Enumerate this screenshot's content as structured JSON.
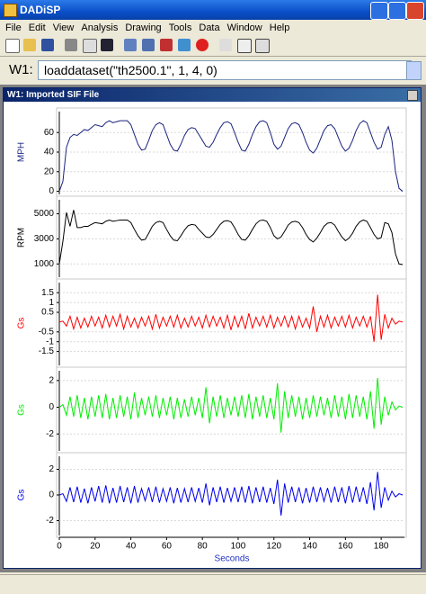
{
  "window": {
    "title": "DADiSP",
    "menu": [
      "File",
      "Edit",
      "View",
      "Analysis",
      "Drawing",
      "Tools",
      "Data",
      "Window",
      "Help"
    ],
    "command_label": "W1:",
    "command": "loaddataset(\"th2500.1\", 1, 4, 0)",
    "panel_title": "W1: Imported SIF File"
  },
  "chart_data": [
    {
      "type": "line",
      "ylabel": "MPH",
      "color": "#1a237e",
      "xlim": [
        0,
        193
      ],
      "ylim": [
        -5,
        85
      ],
      "yticks": [
        0,
        20,
        40,
        60
      ],
      "grid": true,
      "x": [
        0,
        2,
        4,
        6,
        8,
        10,
        12,
        14,
        16,
        18,
        20,
        22,
        24,
        26,
        28,
        30,
        32,
        34,
        36,
        38,
        40,
        42,
        44,
        46,
        48,
        50,
        52,
        54,
        56,
        58,
        60,
        62,
        64,
        66,
        68,
        70,
        72,
        74,
        76,
        78,
        80,
        82,
        84,
        86,
        88,
        90,
        92,
        94,
        96,
        98,
        100,
        102,
        104,
        106,
        108,
        110,
        112,
        114,
        116,
        118,
        120,
        122,
        124,
        126,
        128,
        130,
        132,
        134,
        136,
        138,
        140,
        142,
        144,
        146,
        148,
        150,
        152,
        154,
        156,
        158,
        160,
        162,
        164,
        166,
        168,
        170,
        172,
        174,
        176,
        178,
        180,
        182,
        184,
        186,
        188,
        190,
        192
      ],
      "values": [
        0,
        10,
        45,
        55,
        58,
        57,
        60,
        63,
        62,
        65,
        68,
        67,
        66,
        70,
        72,
        70,
        71,
        72,
        72,
        72,
        68,
        58,
        48,
        42,
        43,
        52,
        62,
        68,
        70,
        68,
        58,
        48,
        42,
        41,
        48,
        57,
        63,
        65,
        64,
        58,
        52,
        46,
        45,
        50,
        58,
        65,
        70,
        71,
        69,
        60,
        50,
        42,
        41,
        48,
        58,
        66,
        71,
        72,
        70,
        60,
        48,
        43,
        46,
        55,
        64,
        69,
        70,
        68,
        60,
        50,
        42,
        39,
        44,
        53,
        62,
        67,
        68,
        64,
        55,
        46,
        41,
        44,
        52,
        62,
        69,
        72,
        70,
        60,
        50,
        43,
        45,
        58,
        66,
        52,
        20,
        3,
        0
      ]
    },
    {
      "type": "line",
      "ylabel": "RPM",
      "color": "#000000",
      "xlim": [
        0,
        193
      ],
      "ylim": [
        -200,
        6400
      ],
      "yticks": [
        1000,
        3000,
        5000
      ],
      "grid": true,
      "x": [
        0,
        2,
        4,
        6,
        8,
        10,
        12,
        14,
        16,
        18,
        20,
        22,
        24,
        26,
        28,
        30,
        32,
        34,
        36,
        38,
        40,
        42,
        44,
        46,
        48,
        50,
        52,
        54,
        56,
        58,
        60,
        62,
        64,
        66,
        68,
        70,
        72,
        74,
        76,
        78,
        80,
        82,
        84,
        86,
        88,
        90,
        92,
        94,
        96,
        98,
        100,
        102,
        104,
        106,
        108,
        110,
        112,
        114,
        116,
        118,
        120,
        122,
        124,
        126,
        128,
        130,
        132,
        134,
        136,
        138,
        140,
        142,
        144,
        146,
        148,
        150,
        152,
        154,
        156,
        158,
        160,
        162,
        164,
        166,
        168,
        170,
        172,
        174,
        176,
        178,
        180,
        182,
        184,
        186,
        188,
        190,
        192
      ],
      "values": [
        1000,
        2800,
        5100,
        4000,
        5300,
        3900,
        3900,
        4000,
        4000,
        4150,
        4300,
        4250,
        4200,
        4400,
        4500,
        4400,
        4450,
        4500,
        4500,
        4500,
        4300,
        3750,
        3250,
        2900,
        2950,
        3450,
        4000,
        4300,
        4400,
        4300,
        3750,
        3250,
        2900,
        2850,
        3250,
        3700,
        4050,
        4150,
        4100,
        3750,
        3450,
        3150,
        3100,
        3350,
        3750,
        4150,
        4400,
        4450,
        4350,
        3900,
        3350,
        2950,
        2900,
        3250,
        3750,
        4200,
        4450,
        4500,
        4400,
        3900,
        3250,
        3000,
        3150,
        3600,
        4100,
        4350,
        4400,
        4300,
        3900,
        3350,
        2950,
        2750,
        3050,
        3500,
        4000,
        4250,
        4300,
        4100,
        3600,
        3150,
        2850,
        3050,
        3450,
        4000,
        4350,
        4500,
        4400,
        3900,
        3350,
        3000,
        3100,
        4300,
        4200,
        3500,
        1800,
        1000,
        950
      ]
    },
    {
      "type": "line",
      "ylabel": "Gs",
      "color": "#ff0000",
      "xlim": [
        0,
        193
      ],
      "ylim": [
        -2.3,
        2.2
      ],
      "yticks": [
        1.5,
        1,
        0.5,
        -0.5,
        -1,
        -1.5
      ],
      "grid": true,
      "x": [
        0,
        2,
        4,
        6,
        8,
        10,
        12,
        14,
        16,
        18,
        20,
        22,
        24,
        26,
        28,
        30,
        32,
        34,
        36,
        38,
        40,
        42,
        44,
        46,
        48,
        50,
        52,
        54,
        56,
        58,
        60,
        62,
        64,
        66,
        68,
        70,
        72,
        74,
        76,
        78,
        80,
        82,
        84,
        86,
        88,
        90,
        92,
        94,
        96,
        98,
        100,
        102,
        104,
        106,
        108,
        110,
        112,
        114,
        116,
        118,
        120,
        122,
        124,
        126,
        128,
        130,
        132,
        134,
        136,
        138,
        140,
        142,
        144,
        146,
        148,
        150,
        152,
        154,
        156,
        158,
        160,
        162,
        164,
        166,
        168,
        170,
        172,
        174,
        176,
        178,
        180,
        182,
        184,
        186,
        188,
        190,
        192
      ],
      "values": [
        0,
        0.05,
        -0.2,
        0.3,
        -0.35,
        0.25,
        -0.3,
        0.2,
        -0.25,
        0.3,
        -0.2,
        0.25,
        -0.3,
        0.35,
        -0.25,
        0.3,
        -0.2,
        0.4,
        -0.35,
        0.3,
        -0.25,
        0.2,
        -0.3,
        0.25,
        -0.2,
        0.3,
        -0.35,
        0.4,
        -0.3,
        0.25,
        -0.2,
        0.3,
        -0.25,
        0.35,
        -0.3,
        0.2,
        -0.25,
        0.3,
        -0.2,
        0.25,
        -0.3,
        0.35,
        -0.25,
        0.3,
        -0.2,
        0.25,
        -0.3,
        0.35,
        -0.4,
        0.3,
        -0.25,
        0.3,
        -0.35,
        0.45,
        -0.3,
        0.25,
        -0.2,
        0.3,
        -0.25,
        0.35,
        -0.3,
        0.25,
        -0.2,
        0.3,
        -0.25,
        0.3,
        -0.35,
        0.3,
        -0.25,
        0.2,
        -0.3,
        0.8,
        -0.5,
        0.3,
        -0.25,
        0.35,
        -0.3,
        0.25,
        -0.2,
        0.3,
        -0.25,
        0.35,
        -0.3,
        0.25,
        -0.2,
        0.3,
        -0.25,
        0.3,
        -1.0,
        1.4,
        -0.9,
        0.4,
        -0.3,
        0.2,
        -0.1,
        0.05,
        0
      ]
    },
    {
      "type": "line",
      "ylabel": "Gs",
      "color": "#00ee00",
      "xlim": [
        0,
        193
      ],
      "ylim": [
        -3.4,
        3.0
      ],
      "yticks": [
        2,
        0,
        -2
      ],
      "grid": true,
      "x": [
        0,
        2,
        4,
        6,
        8,
        10,
        12,
        14,
        16,
        18,
        20,
        22,
        24,
        26,
        28,
        30,
        32,
        34,
        36,
        38,
        40,
        42,
        44,
        46,
        48,
        50,
        52,
        54,
        56,
        58,
        60,
        62,
        64,
        66,
        68,
        70,
        72,
        74,
        76,
        78,
        80,
        82,
        84,
        86,
        88,
        90,
        92,
        94,
        96,
        98,
        100,
        102,
        104,
        106,
        108,
        110,
        112,
        114,
        116,
        118,
        120,
        122,
        124,
        126,
        128,
        130,
        132,
        134,
        136,
        138,
        140,
        142,
        144,
        146,
        148,
        150,
        152,
        154,
        156,
        158,
        160,
        162,
        164,
        166,
        168,
        170,
        172,
        174,
        176,
        178,
        180,
        182,
        184,
        186,
        188,
        190,
        192
      ],
      "values": [
        0,
        0.2,
        -0.6,
        0.8,
        -0.7,
        0.9,
        -0.8,
        0.7,
        -0.9,
        0.8,
        -0.7,
        0.9,
        -0.8,
        1.0,
        -0.9,
        0.7,
        -0.8,
        0.9,
        -0.7,
        0.8,
        -0.9,
        1.1,
        -0.8,
        0.7,
        -0.6,
        0.8,
        -0.7,
        0.9,
        -0.8,
        0.7,
        -0.6,
        0.8,
        -0.9,
        0.7,
        -0.8,
        0.6,
        -0.7,
        0.8,
        -0.6,
        0.7,
        -0.8,
        1.5,
        -1.2,
        0.8,
        -0.7,
        0.9,
        -0.8,
        0.7,
        -0.6,
        0.8,
        -0.7,
        0.9,
        -0.8,
        1.0,
        -0.9,
        0.8,
        -0.7,
        0.9,
        -0.8,
        0.7,
        -0.9,
        1.8,
        -1.9,
        1.2,
        -0.8,
        0.9,
        -0.7,
        0.8,
        -0.9,
        0.7,
        -0.8,
        0.9,
        -0.7,
        0.8,
        -0.6,
        0.7,
        -0.8,
        0.9,
        -0.7,
        0.8,
        -0.9,
        1.0,
        -0.8,
        0.9,
        -0.7,
        0.8,
        -0.9,
        1.2,
        -1.6,
        2.2,
        -1.3,
        0.8,
        -0.6,
        0.4,
        -0.2,
        0.1,
        0
      ]
    },
    {
      "type": "line",
      "ylabel": "Gs",
      "color": "#0000ee",
      "xlim": [
        0,
        193
      ],
      "ylim": [
        -3.3,
        3.3
      ],
      "yticks": [
        2,
        0,
        -2
      ],
      "grid": true,
      "xticks": [
        0,
        20,
        40,
        60,
        80,
        100,
        120,
        140,
        160,
        180
      ],
      "xlabel": "Seconds",
      "x": [
        0,
        2,
        4,
        6,
        8,
        10,
        12,
        14,
        16,
        18,
        20,
        22,
        24,
        26,
        28,
        30,
        32,
        34,
        36,
        38,
        40,
        42,
        44,
        46,
        48,
        50,
        52,
        54,
        56,
        58,
        60,
        62,
        64,
        66,
        68,
        70,
        72,
        74,
        76,
        78,
        80,
        82,
        84,
        86,
        88,
        90,
        92,
        94,
        96,
        98,
        100,
        102,
        104,
        106,
        108,
        110,
        112,
        114,
        116,
        118,
        120,
        122,
        124,
        126,
        128,
        130,
        132,
        134,
        136,
        138,
        140,
        142,
        144,
        146,
        148,
        150,
        152,
        154,
        156,
        158,
        160,
        162,
        164,
        166,
        168,
        170,
        172,
        174,
        176,
        178,
        180,
        182,
        184,
        186,
        188,
        190,
        192
      ],
      "values": [
        0,
        0.1,
        -0.5,
        0.6,
        -0.55,
        0.65,
        -0.6,
        0.5,
        -0.65,
        0.6,
        -0.5,
        0.7,
        -0.6,
        0.75,
        -0.65,
        0.55,
        -0.6,
        0.7,
        -0.55,
        0.6,
        -0.65,
        0.7,
        -0.6,
        0.5,
        -0.45,
        0.6,
        -0.55,
        0.65,
        -0.6,
        0.5,
        -0.5,
        0.6,
        -0.65,
        0.55,
        -0.6,
        0.5,
        -0.55,
        0.6,
        -0.5,
        0.55,
        -0.6,
        0.9,
        -0.8,
        0.6,
        -0.55,
        0.65,
        -0.6,
        0.55,
        -0.5,
        0.6,
        -0.55,
        0.65,
        -0.6,
        0.7,
        -0.65,
        0.6,
        -0.55,
        0.65,
        -0.6,
        0.55,
        -0.7,
        1.2,
        -1.6,
        0.9,
        -0.6,
        0.65,
        -0.55,
        0.6,
        -0.65,
        0.55,
        -0.6,
        0.65,
        -0.55,
        0.6,
        -0.5,
        0.55,
        -0.6,
        0.65,
        -0.55,
        0.6,
        -0.65,
        0.7,
        -0.6,
        0.65,
        -0.55,
        0.6,
        -0.7,
        1.0,
        -1.2,
        1.8,
        -1.0,
        0.6,
        -0.4,
        0.3,
        -0.15,
        0.1,
        0
      ]
    }
  ]
}
